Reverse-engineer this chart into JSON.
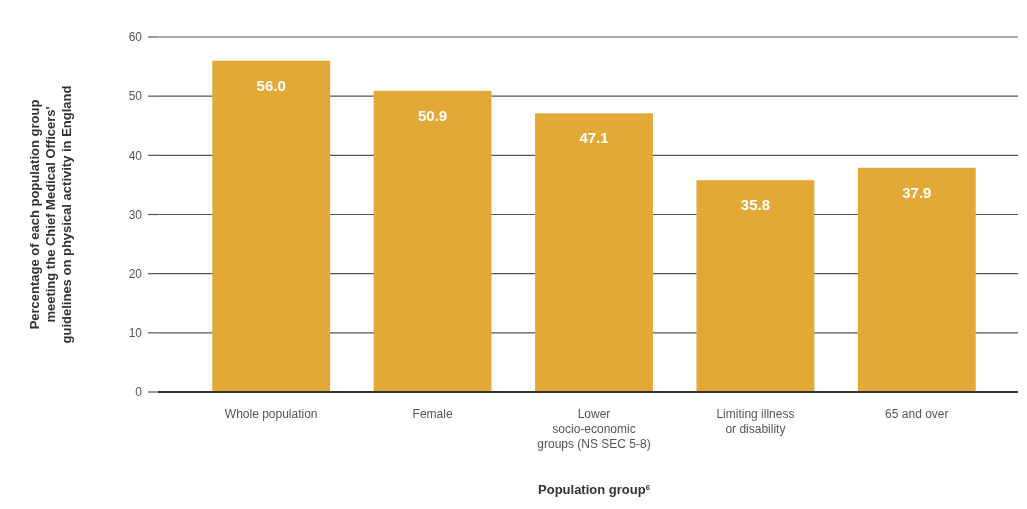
{
  "chart_data": {
    "type": "bar",
    "xlabel": "Population group$^{6}$",
    "ylabel": "Percentage of each population group\nmeeting the Chief Medical Officers'\nguidelines on physical activity in England",
    "categories": [
      "Whole population",
      "Female",
      "Lower\nsocio-economic\ngroups (NS SEC 5-8)",
      "Limiting illness\nor disability",
      "65 and over"
    ],
    "values": [
      56.0,
      50.9,
      47.1,
      35.8,
      37.9
    ],
    "color": "#e3a937",
    "ylim": [
      0,
      60
    ],
    "yticks": [
      0,
      10,
      20,
      30,
      40,
      50,
      60
    ],
    "grid": "y",
    "value_labels": [
      "56.0",
      "50.9",
      "47.1",
      "35.8",
      "37.9"
    ]
  }
}
